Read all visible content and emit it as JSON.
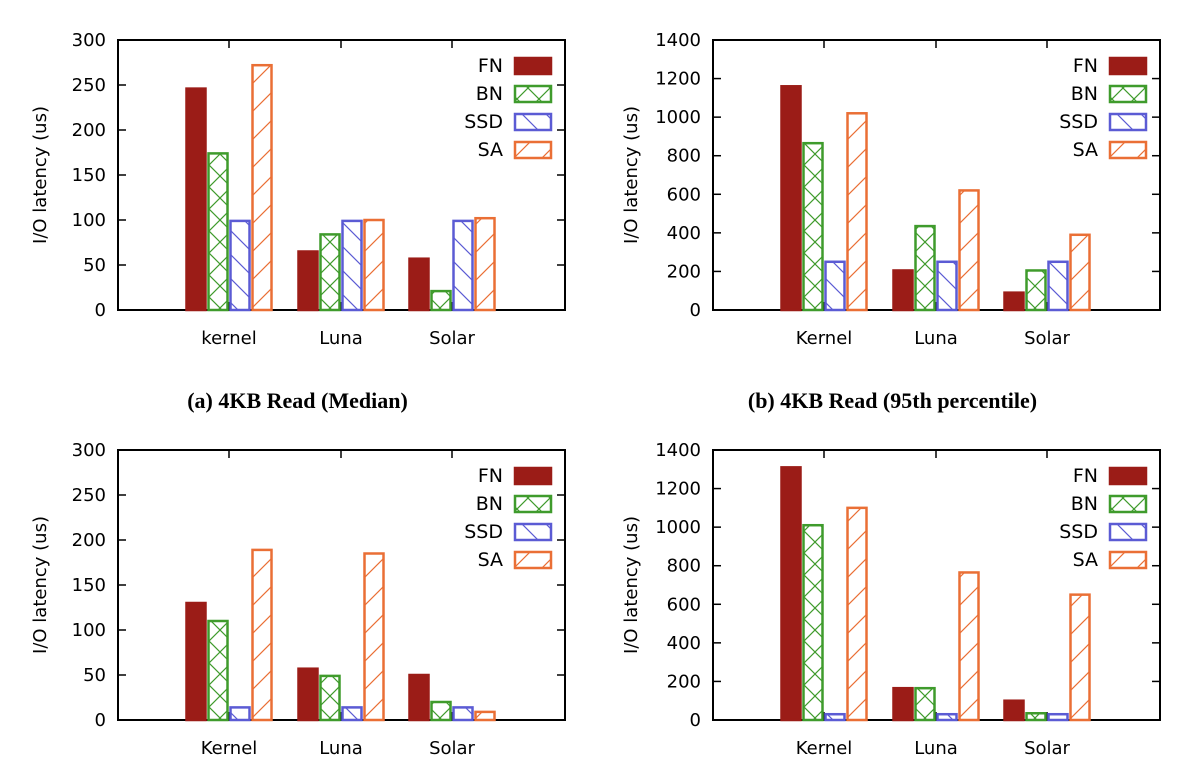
{
  "figure": {
    "panels": [
      {
        "id": "a",
        "caption": "(a) 4KB Read (Median)"
      },
      {
        "id": "b",
        "caption": "(b) 4KB Read (95th percentile)"
      },
      {
        "id": "c",
        "caption": ""
      },
      {
        "id": "d",
        "caption": ""
      }
    ]
  },
  "colors": {
    "FN": "#9b1c17",
    "BN": "#3f9b2c",
    "SSD": "#5b5bd4",
    "SA": "#ea6f35"
  },
  "chart_data": [
    {
      "type": "bar",
      "title": "",
      "caption": "(a) 4KB Read (Median)",
      "xlabel": "",
      "ylabel": "I/O latency (us)",
      "categories": [
        "kernel",
        "Luna",
        "Solar"
      ],
      "ylim": [
        0,
        300
      ],
      "yticks": [
        0,
        50,
        100,
        150,
        200,
        250,
        300
      ],
      "grid": false,
      "legend": "top-right",
      "series": [
        {
          "name": "FN",
          "pattern": "solid",
          "values": [
            246,
            65,
            57
          ]
        },
        {
          "name": "BN",
          "pattern": "crosshatch",
          "values": [
            174,
            84,
            21
          ]
        },
        {
          "name": "SSD",
          "pattern": "backslash",
          "values": [
            99,
            99,
            99
          ]
        },
        {
          "name": "SA",
          "pattern": "slash",
          "values": [
            272,
            100,
            102
          ]
        }
      ]
    },
    {
      "type": "bar",
      "title": "",
      "caption": "(b) 4KB Read (95th percentile)",
      "xlabel": "",
      "ylabel": "I/O latency (us)",
      "categories": [
        "Kernel",
        "Luna",
        "Solar"
      ],
      "ylim": [
        0,
        1400
      ],
      "yticks": [
        0,
        200,
        400,
        600,
        800,
        1000,
        1200,
        1400
      ],
      "grid": false,
      "legend": "top-right",
      "series": [
        {
          "name": "FN",
          "pattern": "solid",
          "values": [
            1160,
            205,
            90
          ]
        },
        {
          "name": "BN",
          "pattern": "crosshatch",
          "values": [
            865,
            435,
            205
          ]
        },
        {
          "name": "SSD",
          "pattern": "backslash",
          "values": [
            250,
            250,
            250
          ]
        },
        {
          "name": "SA",
          "pattern": "slash",
          "values": [
            1020,
            620,
            390
          ]
        }
      ]
    },
    {
      "type": "bar",
      "title": "",
      "caption": "",
      "xlabel": "",
      "ylabel": "I/O latency (us)",
      "categories": [
        "Kernel",
        "Luna",
        "Solar"
      ],
      "ylim": [
        0,
        300
      ],
      "yticks": [
        0,
        50,
        100,
        150,
        200,
        250,
        300
      ],
      "grid": false,
      "legend": "top-right",
      "series": [
        {
          "name": "FN",
          "pattern": "solid",
          "values": [
            130,
            57,
            50
          ]
        },
        {
          "name": "BN",
          "pattern": "crosshatch",
          "values": [
            110,
            49,
            20
          ]
        },
        {
          "name": "SSD",
          "pattern": "backslash",
          "values": [
            14,
            14,
            14
          ]
        },
        {
          "name": "SA",
          "pattern": "slash",
          "values": [
            189,
            185,
            9
          ]
        }
      ]
    },
    {
      "type": "bar",
      "title": "",
      "caption": "",
      "xlabel": "",
      "ylabel": "I/O latency (us)",
      "categories": [
        "Kernel",
        "Luna",
        "Solar"
      ],
      "ylim": [
        0,
        1400
      ],
      "yticks": [
        0,
        200,
        400,
        600,
        800,
        1000,
        1200,
        1400
      ],
      "grid": false,
      "legend": "top-right",
      "series": [
        {
          "name": "FN",
          "pattern": "solid",
          "values": [
            1310,
            165,
            100
          ]
        },
        {
          "name": "BN",
          "pattern": "crosshatch",
          "values": [
            1010,
            165,
            35
          ]
        },
        {
          "name": "SSD",
          "pattern": "backslash",
          "values": [
            30,
            30,
            30
          ]
        },
        {
          "name": "SA",
          "pattern": "slash",
          "values": [
            1100,
            765,
            650
          ]
        }
      ]
    }
  ]
}
